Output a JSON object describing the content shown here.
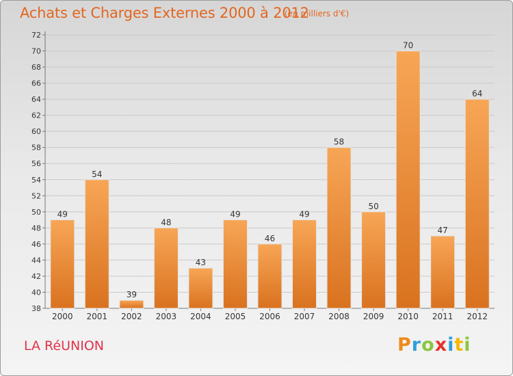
{
  "header": {
    "title": "Achats et Charges Externes 2000 à 2012",
    "unit": "(en milliers d'€)"
  },
  "footer": {
    "region": "LA RéUNION",
    "logo": {
      "letters": [
        "P",
        "r",
        "o",
        "x",
        "i",
        "t",
        "i"
      ],
      "colors": [
        "#f08a1c",
        "#2f9fd8",
        "#8cc63e",
        "#e5332a",
        "#2f9fd8",
        "#f5b800",
        "#8cc63e"
      ]
    }
  },
  "colors": {
    "bar_top": "#f7a656",
    "bar_bottom": "#d9721f",
    "title": "#e2661f",
    "region": "#e0334a"
  },
  "chart_data": {
    "type": "bar",
    "categories": [
      "2000",
      "2001",
      "2002",
      "2003",
      "2004",
      "2005",
      "2006",
      "2007",
      "2008",
      "2009",
      "2010",
      "2011",
      "2012"
    ],
    "values": [
      49,
      54,
      39,
      48,
      43,
      49,
      46,
      49,
      58,
      50,
      70,
      47,
      64
    ],
    "ylim": [
      38,
      72
    ],
    "yticks": [
      38,
      40,
      42,
      44,
      46,
      48,
      50,
      52,
      54,
      56,
      58,
      60,
      62,
      64,
      66,
      68,
      70,
      72
    ],
    "grid": true,
    "title": "Achats et Charges Externes 2000 à 2012",
    "xlabel": "",
    "ylabel": ""
  }
}
